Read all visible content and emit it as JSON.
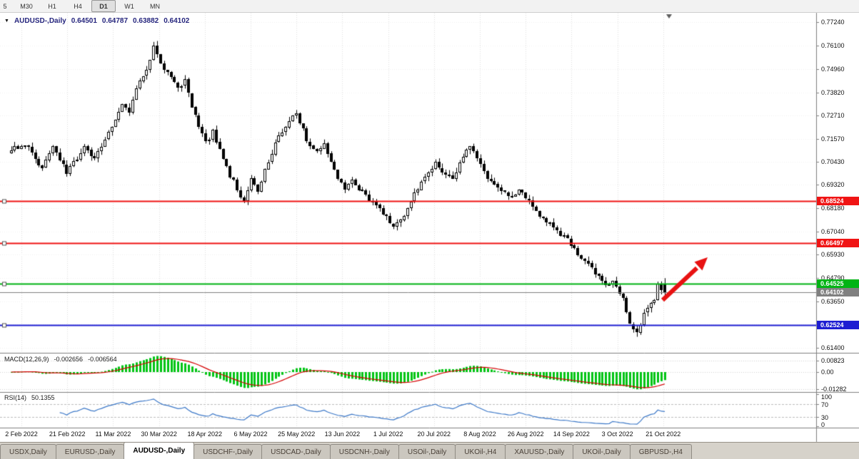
{
  "toolbar": {
    "timeframes": [
      {
        "label": "5",
        "active": false
      },
      {
        "label": "M30",
        "active": false
      },
      {
        "label": "H1",
        "active": false
      },
      {
        "label": "H4",
        "active": false
      },
      {
        "label": "D1",
        "active": true
      },
      {
        "label": "W1",
        "active": false
      },
      {
        "label": "MN",
        "active": false
      }
    ]
  },
  "chart_header": {
    "symbol_label": "AUDUSD-,Daily",
    "open": "0.64501",
    "high": "0.64787",
    "low": "0.63882",
    "close": "0.64102"
  },
  "indicators": {
    "macd": {
      "label": "MACD(12,26,9)",
      "value_main": "-0.002656",
      "value_signal": "-0.006564",
      "axis_ticks": [
        {
          "label": "0.00823",
          "value": 0.00823
        },
        {
          "label": "0.00",
          "value": 0
        },
        {
          "label": "-0.01282",
          "value": -0.01282
        }
      ]
    },
    "rsi": {
      "label": "RSI(14)",
      "value": "50.1355",
      "levels": [
        70,
        30
      ],
      "axis_ticks": [
        {
          "label": "100",
          "value": 100
        },
        {
          "label": "70",
          "value": 70
        },
        {
          "label": "30",
          "value": 30
        },
        {
          "label": "0",
          "value": 0
        }
      ]
    }
  },
  "chart_data": {
    "type": "candlestick",
    "symbol": "AUDUSD-",
    "timeframe": "Daily",
    "title": "AUDUSD-,Daily",
    "last_candle_ohlc": [
      0.64501,
      0.64787,
      0.63882,
      0.64102
    ],
    "candle_count": 189,
    "y_axis_ticks": [
      {
        "label": "0.77240",
        "value": 0.7724
      },
      {
        "label": "0.76100",
        "value": 0.761
      },
      {
        "label": "0.74960",
        "value": 0.7496
      },
      {
        "label": "0.73820",
        "value": 0.7382
      },
      {
        "label": "0.72710",
        "value": 0.7271
      },
      {
        "label": "0.71570",
        "value": 0.7157
      },
      {
        "label": "0.70430",
        "value": 0.7043
      },
      {
        "label": "0.69320",
        "value": 0.6932
      },
      {
        "label": "0.68180",
        "value": 0.6818
      },
      {
        "label": "0.67040",
        "value": 0.6704
      },
      {
        "label": "0.65930",
        "value": 0.6593
      },
      {
        "label": "0.64790",
        "value": 0.6479
      },
      {
        "label": "0.63650",
        "value": 0.6365
      },
      {
        "label": "0.62540",
        "value": 0.6254
      },
      {
        "label": "0.61400",
        "value": 0.614
      }
    ],
    "x_axis_labels": [
      "2 Feb 2022",
      "21 Feb 2022",
      "11 Mar 2022",
      "30 Mar 2022",
      "18 Apr 2022",
      "6 May 2022",
      "25 May 2022",
      "13 Jun 2022",
      "1 Jul 2022",
      "20 Jul 2022",
      "8 Aug 2022",
      "26 Aug 2022",
      "14 Sep 2022",
      "3 Oct 2022",
      "21 Oct 2022"
    ],
    "horizontal_lines": [
      {
        "label": "0.68524",
        "value": 0.68524,
        "color": "#f01414",
        "role": "resistance-line"
      },
      {
        "label": "0.66497",
        "value": 0.66497,
        "color": "#f01414",
        "role": "resistance-line"
      },
      {
        "label": "0.64525",
        "value": 0.64525,
        "color": "#00b414",
        "role": "support-line"
      },
      {
        "label": "0.64102",
        "value": 0.64102,
        "color": "#808080",
        "role": "current-price-line"
      },
      {
        "label": "0.62524",
        "value": 0.62524,
        "color": "#1e1ed2",
        "role": "support-line"
      }
    ],
    "price_waypoints": [
      [
        0,
        0.71
      ],
      [
        4,
        0.7135
      ],
      [
        9,
        0.7015
      ],
      [
        12,
        0.7125
      ],
      [
        16,
        0.6985
      ],
      [
        21,
        0.712
      ],
      [
        24,
        0.706
      ],
      [
        29,
        0.722
      ],
      [
        32,
        0.733
      ],
      [
        34,
        0.729
      ],
      [
        37,
        0.745
      ],
      [
        39,
        0.748
      ],
      [
        41,
        0.76
      ],
      [
        43,
        0.753
      ],
      [
        45,
        0.747
      ],
      [
        48,
        0.741
      ],
      [
        50,
        0.744
      ],
      [
        53,
        0.726
      ],
      [
        56,
        0.714
      ],
      [
        58,
        0.719
      ],
      [
        61,
        0.705
      ],
      [
        63,
        0.698
      ],
      [
        67,
        0.685
      ],
      [
        69,
        0.696
      ],
      [
        71,
        0.69
      ],
      [
        73,
        0.701
      ],
      [
        76,
        0.713
      ],
      [
        79,
        0.722
      ],
      [
        82,
        0.729
      ],
      [
        85,
        0.715
      ],
      [
        88,
        0.709
      ],
      [
        90,
        0.713
      ],
      [
        93,
        0.7
      ],
      [
        96,
        0.691
      ],
      [
        98,
        0.695
      ],
      [
        102,
        0.688
      ],
      [
        105,
        0.684
      ],
      [
        108,
        0.678
      ],
      [
        110,
        0.672
      ],
      [
        113,
        0.679
      ],
      [
        116,
        0.689
      ],
      [
        119,
        0.698
      ],
      [
        122,
        0.704
      ],
      [
        124,
        0.7
      ],
      [
        127,
        0.696
      ],
      [
        130,
        0.708
      ],
      [
        132,
        0.713
      ],
      [
        135,
        0.704
      ],
      [
        137,
        0.696
      ],
      [
        140,
        0.692
      ],
      [
        144,
        0.688
      ],
      [
        146,
        0.69
      ],
      [
        149,
        0.686
      ],
      [
        152,
        0.679
      ],
      [
        155,
        0.674
      ],
      [
        158,
        0.669
      ],
      [
        161,
        0.665
      ],
      [
        163,
        0.66
      ],
      [
        166,
        0.655
      ],
      [
        169,
        0.648
      ],
      [
        171,
        0.644
      ],
      [
        173,
        0.647
      ],
      [
        176,
        0.637
      ],
      [
        178,
        0.625
      ],
      [
        180,
        0.621
      ],
      [
        182,
        0.63
      ],
      [
        183,
        0.634
      ],
      [
        185,
        0.636
      ],
      [
        186,
        0.645
      ],
      [
        188,
        0.641
      ]
    ],
    "colors": {
      "bull": "#ffffff",
      "bear": "#000000",
      "outline": "#000000",
      "macd_histogram": "#00c414",
      "macd_signal": "#d40000",
      "rsi_line": "#3c78c8",
      "arrow": "#e81212",
      "grid": "#dedede"
    },
    "annotation_arrow": {
      "description": "red up-right arrow near latest candles",
      "color": "#e81212"
    }
  },
  "bottom_tabs": [
    {
      "label": "USDX,Daily",
      "active": false
    },
    {
      "label": "EURUSD-,Daily",
      "active": false
    },
    {
      "label": "AUDUSD-,Daily",
      "active": true
    },
    {
      "label": "USDCHF-,Daily",
      "active": false
    },
    {
      "label": "USDCAD-,Daily",
      "active": false
    },
    {
      "label": "USDCNH-,Daily",
      "active": false
    },
    {
      "label": "USOil-,Daily",
      "active": false
    },
    {
      "label": "UKOil-,H4",
      "active": false
    },
    {
      "label": "XAUUSD-,Daily",
      "active": false
    },
    {
      "label": "UKOil-,Daily",
      "active": false
    },
    {
      "label": "GBPUSD-,H4",
      "active": false
    }
  ]
}
